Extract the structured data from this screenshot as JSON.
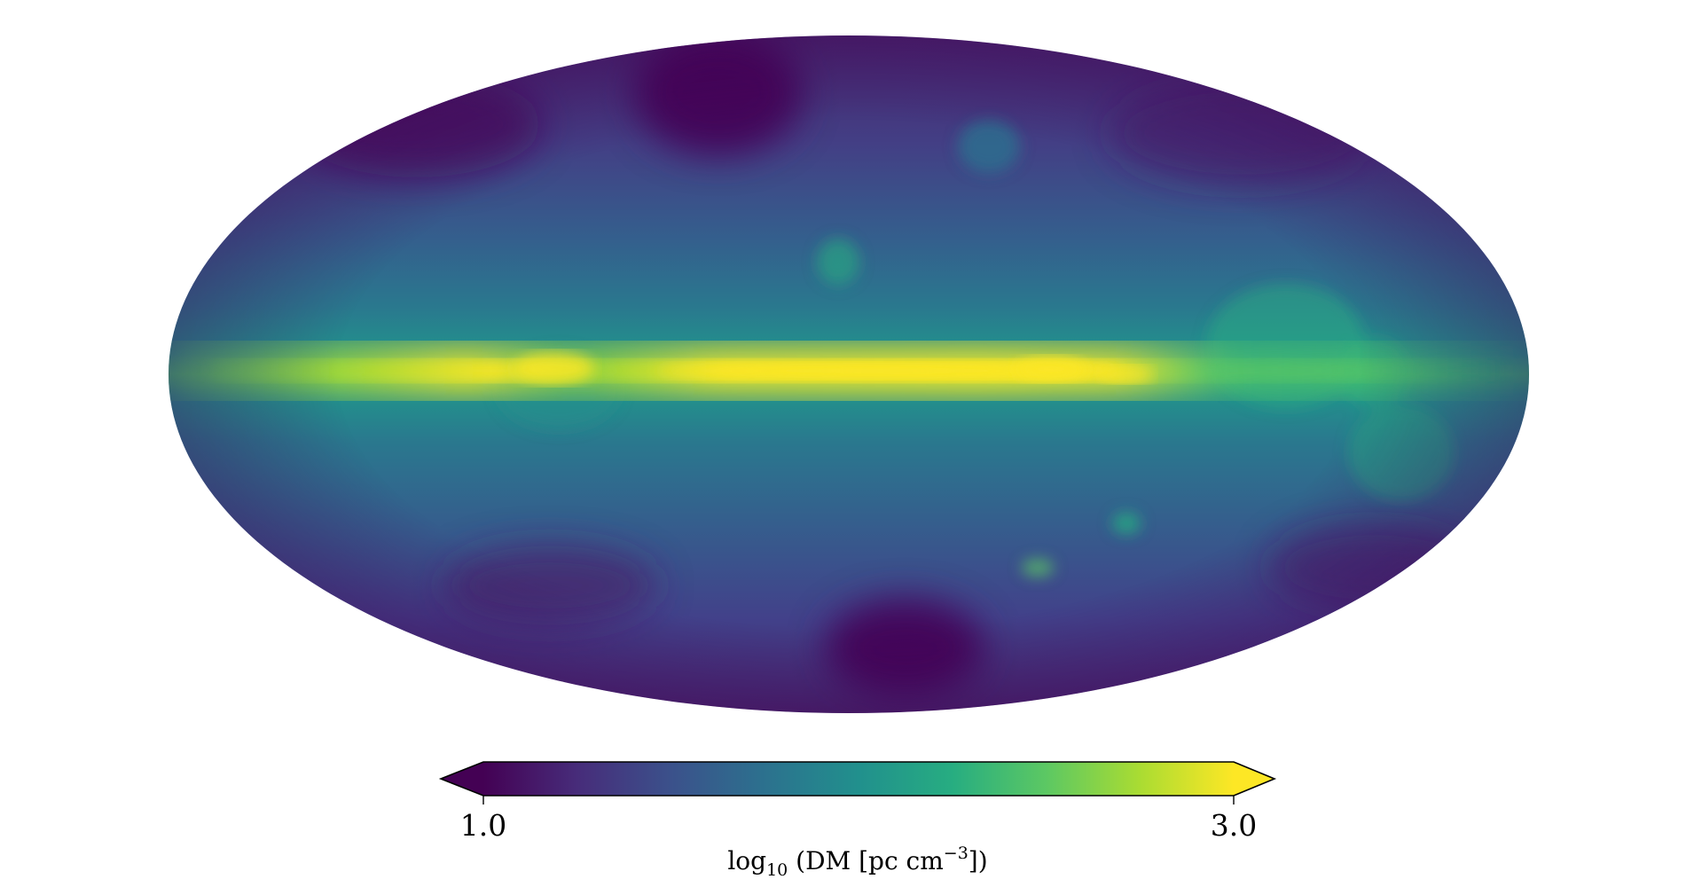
{
  "projection": "mollweide",
  "colormap": "viridis",
  "colorbar": {
    "min": 1.0,
    "max": 3.0,
    "extend": "both",
    "ticks": [
      "1.0",
      "3.0"
    ],
    "label": {
      "pre": "log",
      "sub": "10",
      "mid": " (DM [pc cm",
      "sup": "−3",
      "post": "])"
    }
  },
  "colors": {
    "viridis": [
      "#440154",
      "#472c7a",
      "#3b518b",
      "#2c718e",
      "#21908d",
      "#27ad81",
      "#5cc863",
      "#aadc32",
      "#fde725"
    ]
  }
}
